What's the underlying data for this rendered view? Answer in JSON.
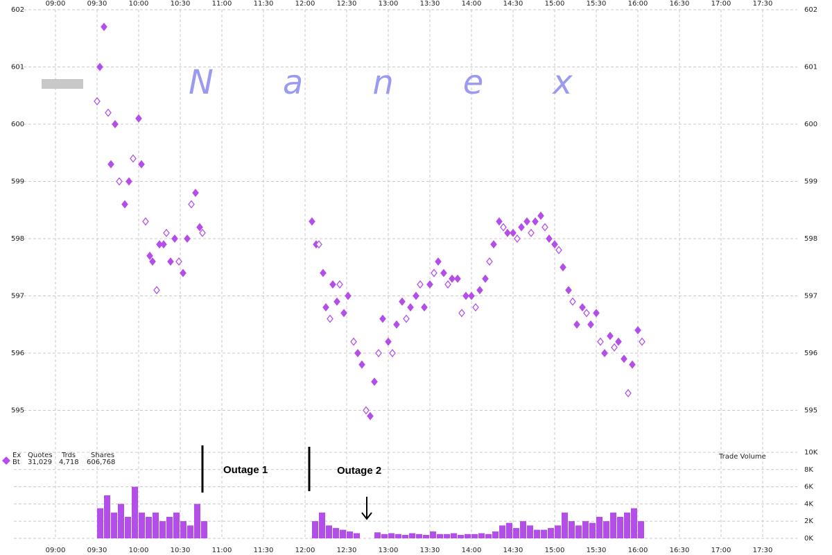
{
  "chart_data": [
    {
      "type": "scatter",
      "watermark": "Nanex",
      "color": "#b44ee8",
      "stats": {
        "headers": [
          "Ex",
          "Quotes",
          "Trds",
          "Shares"
        ],
        "row": [
          "Bt",
          "31,029",
          "4,718",
          "606,768"
        ]
      },
      "annotations": [
        "Outage 1",
        "Outage 2"
      ],
      "x": [
        570,
        572,
        575,
        578,
        580,
        583,
        586,
        590,
        593,
        596,
        600,
        602,
        605,
        608,
        610,
        613,
        615,
        618,
        620,
        623,
        626,
        629,
        632,
        635,
        638,
        641,
        644,
        646,
        725,
        728,
        730,
        733,
        735,
        738,
        740,
        743,
        745,
        748,
        751,
        755,
        758,
        761,
        764,
        767,
        770,
        773,
        776,
        780,
        783,
        786,
        790,
        793,
        796,
        800,
        803,
        806,
        810,
        813,
        816,
        820,
        823,
        826,
        830,
        833,
        836,
        840,
        843,
        846,
        850,
        853,
        856,
        860,
        863,
        866,
        870,
        873,
        876,
        880,
        883,
        886,
        890,
        893,
        896,
        900,
        903,
        906,
        910,
        913,
        916,
        920,
        923,
        926,
        930,
        933,
        936,
        940,
        943,
        946,
        950,
        953,
        956,
        960,
        963
      ],
      "y": [
        600.4,
        601.0,
        601.7,
        600.2,
        599.3,
        600.0,
        599.0,
        598.6,
        599.0,
        599.4,
        600.1,
        599.3,
        598.3,
        597.7,
        597.6,
        597.1,
        597.9,
        597.9,
        598.1,
        597.6,
        598.0,
        597.6,
        597.4,
        598.0,
        598.6,
        598.8,
        598.2,
        598.1,
        598.3,
        597.9,
        597.9,
        597.4,
        596.8,
        596.6,
        597.2,
        596.9,
        597.2,
        596.7,
        597.0,
        596.2,
        596.0,
        595.8,
        595.0,
        594.9,
        595.5,
        596.0,
        596.6,
        596.2,
        596.0,
        596.5,
        596.9,
        596.6,
        596.8,
        597.0,
        597.2,
        596.8,
        597.2,
        597.4,
        597.6,
        597.4,
        597.2,
        597.3,
        597.3,
        596.7,
        597.0,
        597.0,
        596.8,
        597.1,
        597.3,
        597.6,
        597.9,
        598.3,
        598.2,
        598.1,
        598.1,
        598.0,
        598.2,
        598.3,
        598.1,
        598.3,
        598.4,
        598.2,
        598.0,
        597.9,
        597.8,
        597.5,
        597.1,
        596.9,
        596.5,
        596.8,
        596.7,
        596.5,
        596.7,
        596.2,
        596.0,
        596.3,
        596.1,
        596.2,
        595.9,
        595.3,
        595.8,
        596.4,
        596.2
      ],
      "xlim": [
        510,
        1075
      ],
      "xticks": [
        {
          "value": 540,
          "label": "09:00"
        },
        {
          "value": 570,
          "label": "09:30"
        },
        {
          "value": 600,
          "label": "10:00"
        },
        {
          "value": 630,
          "label": "10:30"
        },
        {
          "value": 660,
          "label": "11:00"
        },
        {
          "value": 690,
          "label": "11:30"
        },
        {
          "value": 720,
          "label": "12:00"
        },
        {
          "value": 750,
          "label": "12:30"
        },
        {
          "value": 780,
          "label": "13:00"
        },
        {
          "value": 810,
          "label": "13:30"
        },
        {
          "value": 840,
          "label": "14:00"
        },
        {
          "value": 870,
          "label": "14:30"
        },
        {
          "value": 900,
          "label": "15:00"
        },
        {
          "value": 930,
          "label": "15:30"
        },
        {
          "value": 960,
          "label": "16:00"
        },
        {
          "value": 990,
          "label": "16:30"
        },
        {
          "value": 1020,
          "label": "17:00"
        },
        {
          "value": 1050,
          "label": "17:30"
        }
      ],
      "ylim": [
        594.4,
        602
      ],
      "yticks": [
        595,
        596,
        597,
        598,
        599,
        600,
        601,
        602
      ],
      "grid": true
    },
    {
      "type": "bar",
      "title": "Trade Volume",
      "color": "#b44ee8",
      "x": [
        570,
        575,
        580,
        585,
        590,
        595,
        600,
        605,
        610,
        615,
        620,
        625,
        630,
        635,
        640,
        645,
        725,
        730,
        735,
        740,
        745,
        750,
        755,
        770,
        775,
        780,
        785,
        790,
        795,
        800,
        805,
        810,
        815,
        820,
        825,
        830,
        835,
        840,
        845,
        850,
        855,
        860,
        865,
        870,
        875,
        880,
        885,
        890,
        895,
        900,
        905,
        910,
        915,
        920,
        925,
        930,
        935,
        940,
        945,
        950,
        955,
        960
      ],
      "values": [
        3.5,
        5,
        3,
        4,
        2.5,
        6,
        3,
        2.5,
        3,
        2,
        2.5,
        3,
        2,
        1.5,
        4,
        2,
        2,
        3,
        1.5,
        1.2,
        1,
        0.8,
        0.6,
        0.7,
        0.5,
        0.6,
        0.5,
        0.4,
        0.6,
        0.5,
        0.4,
        0.8,
        0.5,
        0.5,
        0.6,
        0.4,
        0.5,
        0.5,
        0.6,
        0.5,
        0.8,
        1.5,
        1.8,
        1.2,
        2,
        1.5,
        1,
        1,
        1.2,
        1.5,
        3,
        2,
        1.5,
        2,
        1.8,
        2.5,
        2,
        3,
        2.5,
        3,
        3.5,
        2
      ],
      "xlim": [
        510,
        1075
      ],
      "ylim": [
        0,
        10
      ],
      "yticks": [
        {
          "value": 0,
          "label": "0K"
        },
        {
          "value": 2,
          "label": "2K"
        },
        {
          "value": 4,
          "label": "4K"
        },
        {
          "value": 6,
          "label": "6K"
        },
        {
          "value": 8,
          "label": "8K"
        },
        {
          "value": 10,
          "label": "10K"
        }
      ],
      "grid": true
    }
  ]
}
